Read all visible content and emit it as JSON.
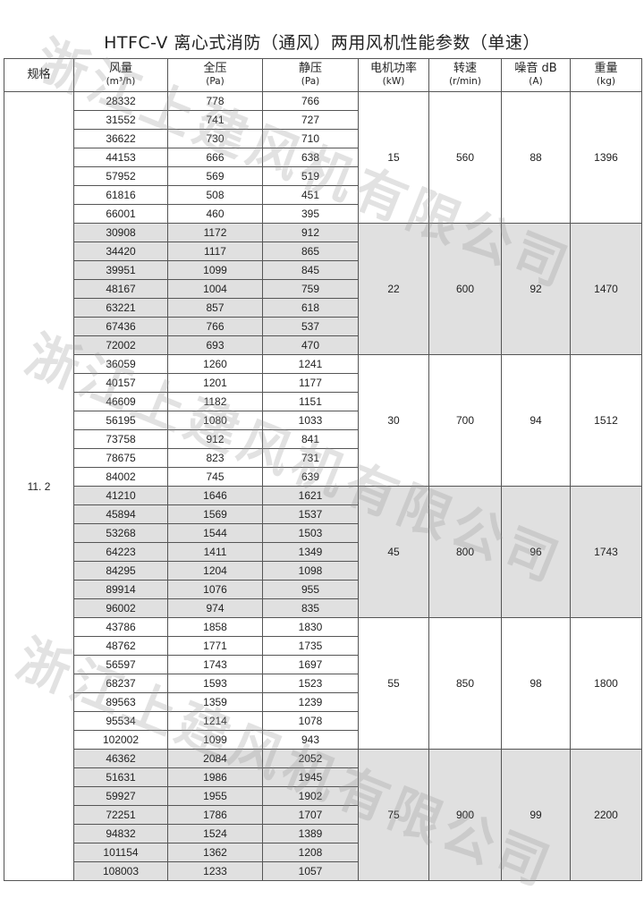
{
  "title": "HTFC-V 离心式消防（通风）两用风机性能参数（单速）",
  "watermark": "浙江上建风机有限公司",
  "colors": {
    "shade": "#e0e0e0",
    "border": "#555555"
  },
  "headers": [
    {
      "label": "规格",
      "unit": ""
    },
    {
      "label": "风量",
      "unit": "(m³/h)"
    },
    {
      "label": "全压",
      "unit": "(Pa)"
    },
    {
      "label": "静压",
      "unit": "(Pa)"
    },
    {
      "label": "电机功率",
      "unit": "(kW)"
    },
    {
      "label": "转速",
      "unit": "(r/min)"
    },
    {
      "label": "噪音 dB",
      "unit": "(A)"
    },
    {
      "label": "重量",
      "unit": "(kg)"
    }
  ],
  "spec": "11. 2",
  "groups": [
    {
      "power": "15",
      "speed": "560",
      "noise": "88",
      "weight": "1396",
      "shaded": false,
      "rows": [
        [
          "28332",
          "778",
          "766"
        ],
        [
          "31552",
          "741",
          "727"
        ],
        [
          "36622",
          "730",
          "710"
        ],
        [
          "44153",
          "666",
          "638"
        ],
        [
          "57952",
          "569",
          "519"
        ],
        [
          "61816",
          "508",
          "451"
        ],
        [
          "66001",
          "460",
          "395"
        ]
      ]
    },
    {
      "power": "22",
      "speed": "600",
      "noise": "92",
      "weight": "1470",
      "shaded": true,
      "rows": [
        [
          "30908",
          "1172",
          "912"
        ],
        [
          "34420",
          "1117",
          "865"
        ],
        [
          "39951",
          "1099",
          "845"
        ],
        [
          "48167",
          "1004",
          "759"
        ],
        [
          "63221",
          "857",
          "618"
        ],
        [
          "67436",
          "766",
          "537"
        ],
        [
          "72002",
          "693",
          "470"
        ]
      ]
    },
    {
      "power": "30",
      "speed": "700",
      "noise": "94",
      "weight": "1512",
      "shaded": false,
      "rows": [
        [
          "36059",
          "1260",
          "1241"
        ],
        [
          "40157",
          "1201",
          "1177"
        ],
        [
          "46609",
          "1182",
          "1151"
        ],
        [
          "56195",
          "1080",
          "1033"
        ],
        [
          "73758",
          "912",
          "841"
        ],
        [
          "78675",
          "823",
          "731"
        ],
        [
          "84002",
          "745",
          "639"
        ]
      ]
    },
    {
      "power": "45",
      "speed": "800",
      "noise": "96",
      "weight": "1743",
      "shaded": true,
      "rows": [
        [
          "41210",
          "1646",
          "1621"
        ],
        [
          "45894",
          "1569",
          "1537"
        ],
        [
          "53268",
          "1544",
          "1503"
        ],
        [
          "64223",
          "1411",
          "1349"
        ],
        [
          "84295",
          "1204",
          "1098"
        ],
        [
          "89914",
          "1076",
          "955"
        ],
        [
          "96002",
          "974",
          "835"
        ]
      ]
    },
    {
      "power": "55",
      "speed": "850",
      "noise": "98",
      "weight": "1800",
      "shaded": false,
      "rows": [
        [
          "43786",
          "1858",
          "1830"
        ],
        [
          "48762",
          "1771",
          "1735"
        ],
        [
          "56597",
          "1743",
          "1697"
        ],
        [
          "68237",
          "1593",
          "1523"
        ],
        [
          "89563",
          "1359",
          "1239"
        ],
        [
          "95534",
          "1214",
          "1078"
        ],
        [
          "102002",
          "1099",
          "943"
        ]
      ]
    },
    {
      "power": "75",
      "speed": "900",
      "noise": "99",
      "weight": "2200",
      "shaded": true,
      "rows": [
        [
          "46362",
          "2084",
          "2052"
        ],
        [
          "51631",
          "1986",
          "1945"
        ],
        [
          "59927",
          "1955",
          "1902"
        ],
        [
          "72251",
          "1786",
          "1707"
        ],
        [
          "94832",
          "1524",
          "1389"
        ],
        [
          "101154",
          "1362",
          "1208"
        ],
        [
          "108003",
          "1233",
          "1057"
        ]
      ]
    }
  ]
}
